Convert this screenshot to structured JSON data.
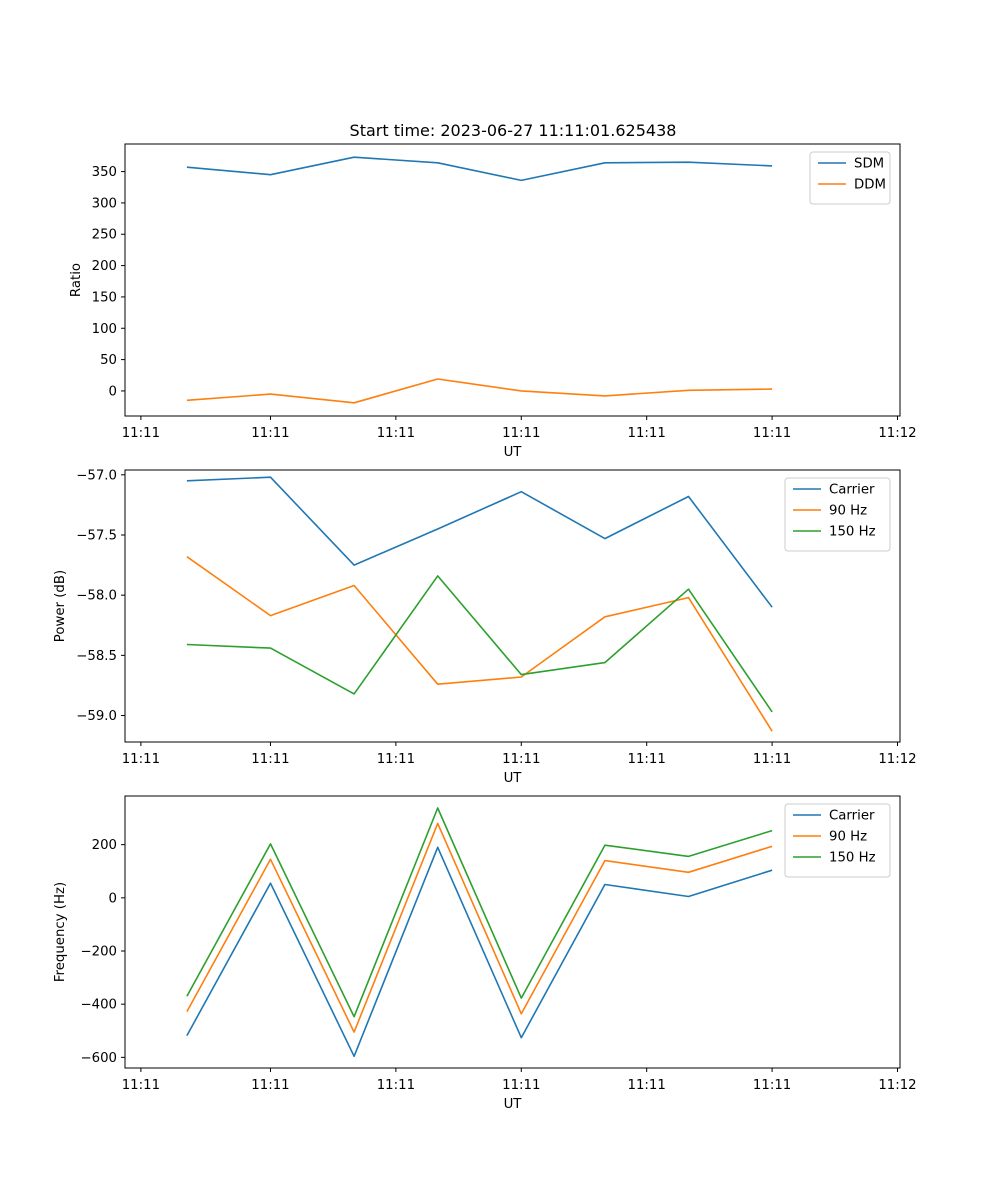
{
  "figure": {
    "title": "Start time: 2023-06-27 11:11:01.625438"
  },
  "colors": {
    "blue": "#1f77b4",
    "orange": "#ff7f0e",
    "green": "#2ca02c"
  },
  "chart_data": [
    {
      "type": "line",
      "title": "Start time: 2023-06-27 11:11:01.625438",
      "xlabel": "UT",
      "ylabel": "Ratio",
      "x": [
        1,
        2,
        3,
        4,
        5,
        6,
        7,
        8
      ],
      "xlim": [
        0.26,
        9.53
      ],
      "xticks": [
        0.45,
        2.0,
        3.5,
        5.0,
        6.5,
        8.0,
        9.5
      ],
      "xtick_labels": [
        "11:11",
        "11:11",
        "11:11",
        "11:11",
        "11:11",
        "11:11",
        "11:12"
      ],
      "ylim": [
        -40,
        394
      ],
      "yticks": [
        0,
        50,
        100,
        150,
        200,
        250,
        300,
        350
      ],
      "ytick_labels": [
        "0",
        "50",
        "100",
        "150",
        "200",
        "250",
        "300",
        "350"
      ],
      "legend": "top-right",
      "series": [
        {
          "name": "SDM",
          "color": "#1f77b4",
          "values": [
            357,
            345,
            373,
            364,
            336,
            364,
            365,
            359
          ]
        },
        {
          "name": "DDM",
          "color": "#ff7f0e",
          "values": [
            -15,
            -5,
            -19,
            19,
            0,
            -8,
            1,
            3
          ]
        }
      ]
    },
    {
      "type": "line",
      "xlabel": "UT",
      "ylabel": "Power (dB)",
      "x": [
        1,
        2,
        3,
        4,
        5,
        6,
        7,
        8
      ],
      "xlim": [
        0.26,
        9.53
      ],
      "xticks": [
        0.45,
        2.0,
        3.5,
        5.0,
        6.5,
        8.0,
        9.5
      ],
      "xtick_labels": [
        "11:11",
        "11:11",
        "11:11",
        "11:11",
        "11:11",
        "11:11",
        "11:12"
      ],
      "ylim": [
        -59.22,
        -56.96
      ],
      "yticks": [
        -59.0,
        -58.5,
        -58.0,
        -57.5,
        -57.0
      ],
      "ytick_labels": [
        "−59.0",
        "−58.5",
        "−58.0",
        "−57.5",
        "−57.0"
      ],
      "legend": "top-right",
      "series": [
        {
          "name": "Carrier",
          "color": "#1f77b4",
          "values": [
            -57.05,
            -57.02,
            -57.75,
            -57.45,
            -57.14,
            -57.53,
            -57.18,
            -58.1
          ]
        },
        {
          "name": "90 Hz",
          "color": "#ff7f0e",
          "values": [
            -57.68,
            -58.17,
            -57.92,
            -58.74,
            -58.68,
            -58.18,
            -58.02,
            -59.13
          ]
        },
        {
          "name": "150 Hz",
          "color": "#2ca02c",
          "values": [
            -58.41,
            -58.44,
            -58.82,
            -57.84,
            -58.66,
            -58.56,
            -57.95,
            -58.97
          ]
        }
      ]
    },
    {
      "type": "line",
      "xlabel": "UT",
      "ylabel": "Frequency (Hz)",
      "x": [
        1,
        2,
        3,
        4,
        5,
        6,
        7,
        8
      ],
      "xlim": [
        0.26,
        9.53
      ],
      "xticks": [
        0.45,
        2.0,
        3.5,
        5.0,
        6.5,
        8.0,
        9.5
      ],
      "xtick_labels": [
        "11:11",
        "11:11",
        "11:11",
        "11:11",
        "11:11",
        "11:11",
        "11:12"
      ],
      "ylim": [
        -640,
        383
      ],
      "yticks": [
        -600,
        -400,
        -200,
        0,
        200
      ],
      "ytick_labels": [
        "−600",
        "−400",
        "−200",
        "0",
        "200"
      ],
      "legend": "top-right",
      "series": [
        {
          "name": "Carrier",
          "color": "#1f77b4",
          "values": [
            -518,
            55,
            -596,
            190,
            -526,
            50,
            5,
            104
          ]
        },
        {
          "name": "90 Hz",
          "color": "#ff7f0e",
          "values": [
            -428,
            145,
            -505,
            280,
            -436,
            140,
            96,
            194
          ]
        },
        {
          "name": "150 Hz",
          "color": "#2ca02c",
          "values": [
            -370,
            203,
            -447,
            338,
            -377,
            198,
            156,
            253
          ]
        }
      ]
    }
  ]
}
